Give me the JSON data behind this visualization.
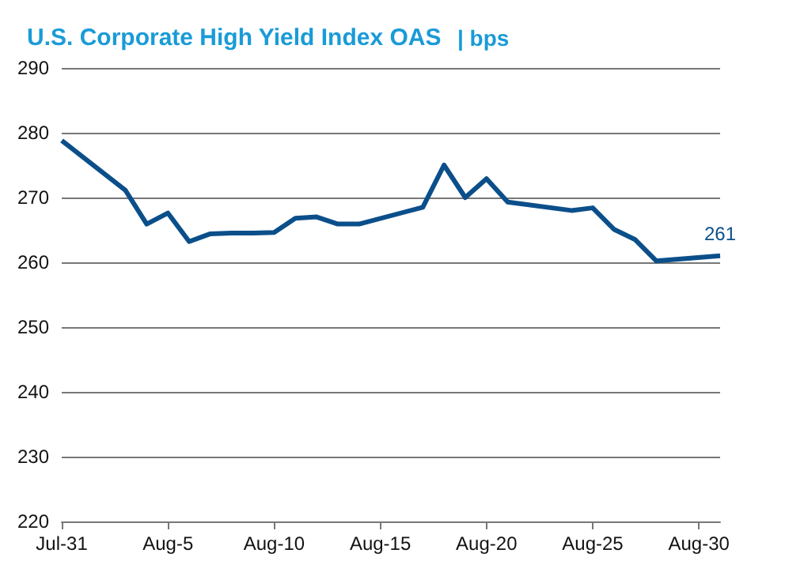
{
  "chart_data": {
    "type": "line",
    "title": "U.S. Corporate High Yield Index OAS",
    "subtitle": "| bps",
    "x": [
      "--07-31",
      "--08-03",
      "--08-04",
      "--08-05",
      "--08-06",
      "--08-07",
      "--08-08",
      "--08-09",
      "--08-10",
      "--08-11",
      "--08-12",
      "--08-13",
      "--08-14",
      "--08-17",
      "--08-18",
      "--08-19",
      "--08-20",
      "--08-21",
      "--08-24",
      "--08-25",
      "--08-26",
      "--08-27",
      "--08-28",
      "--08-31"
    ],
    "series": [
      {
        "color": "#0b4f8a",
        "values": [
          278.8,
          271.1,
          265.9,
          267.6,
          263.2,
          264.4,
          264.5,
          264.5,
          264.6,
          266.8,
          267.0,
          265.9,
          265.9,
          268.5,
          275.0,
          270.0,
          272.9,
          269.3,
          268.0,
          268.4,
          265.1,
          263.5,
          260.2,
          261
        ],
        "value_labels": [
          null,
          null,
          null,
          null,
          null,
          null,
          null,
          null,
          null,
          null,
          null,
          null,
          null,
          null,
          null,
          null,
          null,
          null,
          null,
          null,
          null,
          null,
          null,
          "261"
        ]
      }
    ],
    "xlim": [
      "--07-31",
      "--08-31"
    ],
    "xticks": [
      {
        "value": "--07-31",
        "label": "Jul-31"
      },
      {
        "value": "--08-05",
        "label": "Aug-5"
      },
      {
        "value": "--08-10",
        "label": "Aug-10"
      },
      {
        "value": "--08-15",
        "label": "Aug-15"
      },
      {
        "value": "--08-20",
        "label": "Aug-20"
      },
      {
        "value": "--08-25",
        "label": "Aug-25"
      },
      {
        "value": "--08-30",
        "label": "Aug-30"
      }
    ],
    "ylim": [
      220,
      290
    ],
    "yticks": [
      220,
      230,
      240,
      250,
      260,
      270,
      280,
      290
    ],
    "grid": "y",
    "marker": "none",
    "line_style": "solid"
  }
}
